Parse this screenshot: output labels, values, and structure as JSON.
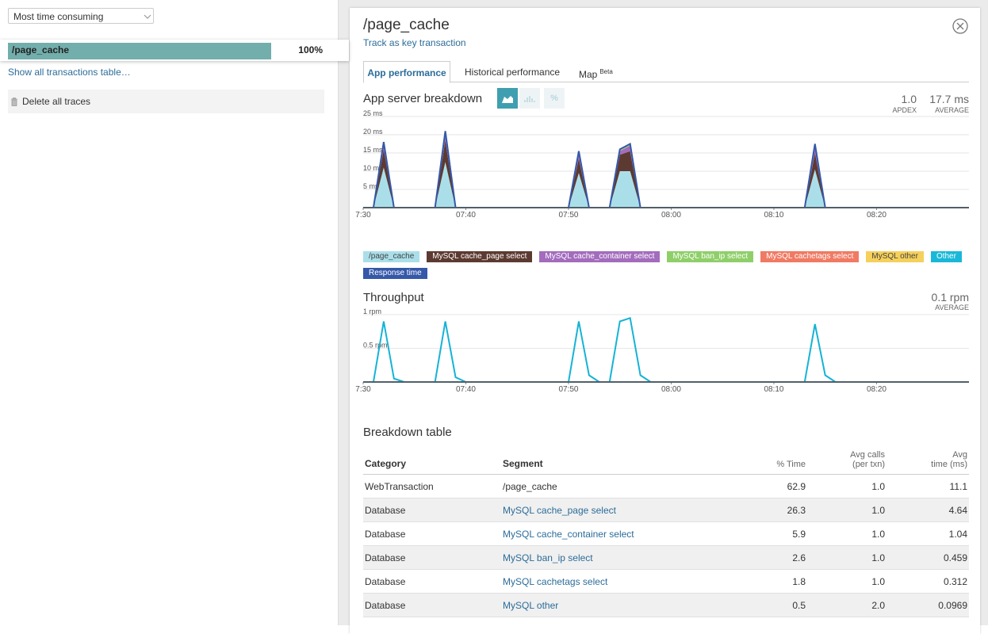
{
  "sidebar": {
    "sort_select": "Most time consuming",
    "transactions": {
      "categories": [
        "/page_cache"
      ],
      "values": [
        100
      ],
      "value_labels": [
        "100%"
      ],
      "color": "#72aeab"
    },
    "show_all_link": "Show all transactions table…",
    "delete_traces": "Delete all traces"
  },
  "panel": {
    "title": "/page_cache",
    "track_link": "Track as key transaction",
    "tabs": [
      "App performance",
      "Historical performance",
      "Map"
    ],
    "map_badge": "Beta"
  },
  "breakdown_chart": {
    "type": "area",
    "title": "App server breakdown",
    "percent_button": "%",
    "apdex": "1.0",
    "apdex_label": "APDEX",
    "average": "17.7 ms",
    "average_label": "AVERAGE",
    "grid": true,
    "x": [
      "07:30",
      "07:31",
      "07:32",
      "07:33",
      "07:37",
      "07:38",
      "07:39",
      "07:50",
      "07:51",
      "07:52",
      "07:54",
      "07:55",
      "07:56",
      "07:57",
      "08:13",
      "08:14",
      "08:15",
      "08:29"
    ],
    "xlim": [
      "07:30",
      "08:29"
    ],
    "xticks": [
      "7:30",
      "07:40",
      "07:50",
      "08:00",
      "08:10",
      "08:20"
    ],
    "ylim": [
      0,
      25
    ],
    "yticks": [
      {
        "value": 5,
        "label": "5 ms"
      },
      {
        "value": 10,
        "label": "10 ms"
      },
      {
        "value": 15,
        "label": "15 ms"
      },
      {
        "value": 20,
        "label": "20 ms"
      },
      {
        "value": 25,
        "label": "25 ms"
      }
    ],
    "series": [
      {
        "name": "/page_cache",
        "color": "#aadfea",
        "values": [
          0,
          0,
          11,
          0,
          0,
          12.5,
          0,
          0,
          9.5,
          0,
          0,
          10,
          10,
          0,
          0,
          10.5,
          0,
          0
        ]
      },
      {
        "name": "MySQL cache_page select",
        "color": "#5d3a31",
        "values": [
          0,
          0,
          5,
          0,
          0,
          6,
          0,
          0,
          4,
          0,
          0,
          4.5,
          5.5,
          0,
          0,
          4.5,
          0,
          0
        ]
      },
      {
        "name": "MySQL cache_container select",
        "color": "#a36cbd",
        "values": [
          0,
          0,
          1.5,
          0,
          0,
          1.2,
          0,
          0,
          1,
          0,
          0,
          1,
          1.5,
          0,
          0,
          1.5,
          0,
          0
        ]
      },
      {
        "name": "MySQL ban_ip select",
        "color": "#8fcf6a",
        "values": [
          0,
          0,
          0.3,
          0,
          0,
          0.5,
          0,
          0,
          0.3,
          0,
          0,
          0.2,
          0.3,
          0,
          0,
          0.3,
          0,
          0
        ]
      },
      {
        "name": "MySQL cachetags select",
        "color": "#f07a63",
        "values": [
          0,
          0,
          0.2,
          0,
          0,
          0.3,
          0,
          0,
          0.2,
          0,
          0,
          0.1,
          0.2,
          0,
          0,
          0.2,
          0,
          0
        ]
      },
      {
        "name": "MySQL other",
        "color": "#f5d05b",
        "values": [
          0,
          0,
          0.1,
          0,
          0,
          0.1,
          0,
          0,
          0.1,
          0,
          0,
          0.1,
          0.1,
          0,
          0,
          0.1,
          0,
          0
        ]
      },
      {
        "name": "Other",
        "color": "#1ab8d8",
        "values": [
          0,
          0,
          0,
          0,
          0,
          0.1,
          0,
          0,
          0,
          0,
          0,
          0,
          0,
          0,
          0,
          0,
          0,
          0
        ]
      },
      {
        "name": "Response time",
        "color": "#3558a9",
        "style": "line",
        "values": [
          0,
          0,
          18,
          0,
          0,
          21,
          0,
          0,
          15.5,
          0,
          0,
          16,
          17.5,
          0,
          0,
          17.5,
          0,
          0
        ]
      }
    ]
  },
  "throughput_chart": {
    "type": "line",
    "title": "Throughput",
    "average": "0.1 rpm",
    "average_label": "AVERAGE",
    "grid": true,
    "x": [
      "07:30",
      "07:31",
      "07:32",
      "07:33",
      "07:34",
      "07:37",
      "07:38",
      "07:39",
      "07:40",
      "07:50",
      "07:51",
      "07:52",
      "07:53",
      "07:54",
      "07:55",
      "07:56",
      "07:57",
      "07:58",
      "08:13",
      "08:14",
      "08:15",
      "08:16",
      "08:29"
    ],
    "values": [
      0,
      0,
      0.9,
      0.05,
      0,
      0,
      0.9,
      0.07,
      0,
      0,
      0.9,
      0.1,
      0,
      0,
      0.9,
      0.95,
      0.1,
      0,
      0,
      0.86,
      0.1,
      0,
      0
    ],
    "color": "#14b3d6",
    "xlim": [
      "07:30",
      "08:29"
    ],
    "xticks": [
      "7:30",
      "07:40",
      "07:50",
      "08:00",
      "08:10",
      "08:20"
    ],
    "ylim": [
      0,
      1
    ],
    "yticks": [
      {
        "value": 0.5,
        "label": "0.5 rpm"
      },
      {
        "value": 1,
        "label": "1 rpm"
      }
    ]
  },
  "breakdown_table": {
    "title": "Breakdown table",
    "columns": [
      [
        "Category"
      ],
      [
        "Segment"
      ],
      [
        "% Time"
      ],
      [
        "Avg calls",
        "(per txn)"
      ],
      [
        "Avg",
        "time (ms)"
      ]
    ],
    "rows": [
      [
        "WebTransaction",
        "/page_cache",
        "62.9",
        "1.0",
        "11.1"
      ],
      [
        "Database",
        "MySQL cache_page select",
        "26.3",
        "1.0",
        "4.64"
      ],
      [
        "Database",
        "MySQL cache_container select",
        "5.9",
        "1.0",
        "1.04"
      ],
      [
        "Database",
        "MySQL ban_ip select",
        "2.6",
        "1.0",
        "0.459"
      ],
      [
        "Database",
        "MySQL cachetags select",
        "1.8",
        "1.0",
        "0.312"
      ],
      [
        "Database",
        "MySQL other",
        "0.5",
        "2.0",
        "0.0969"
      ]
    ]
  }
}
